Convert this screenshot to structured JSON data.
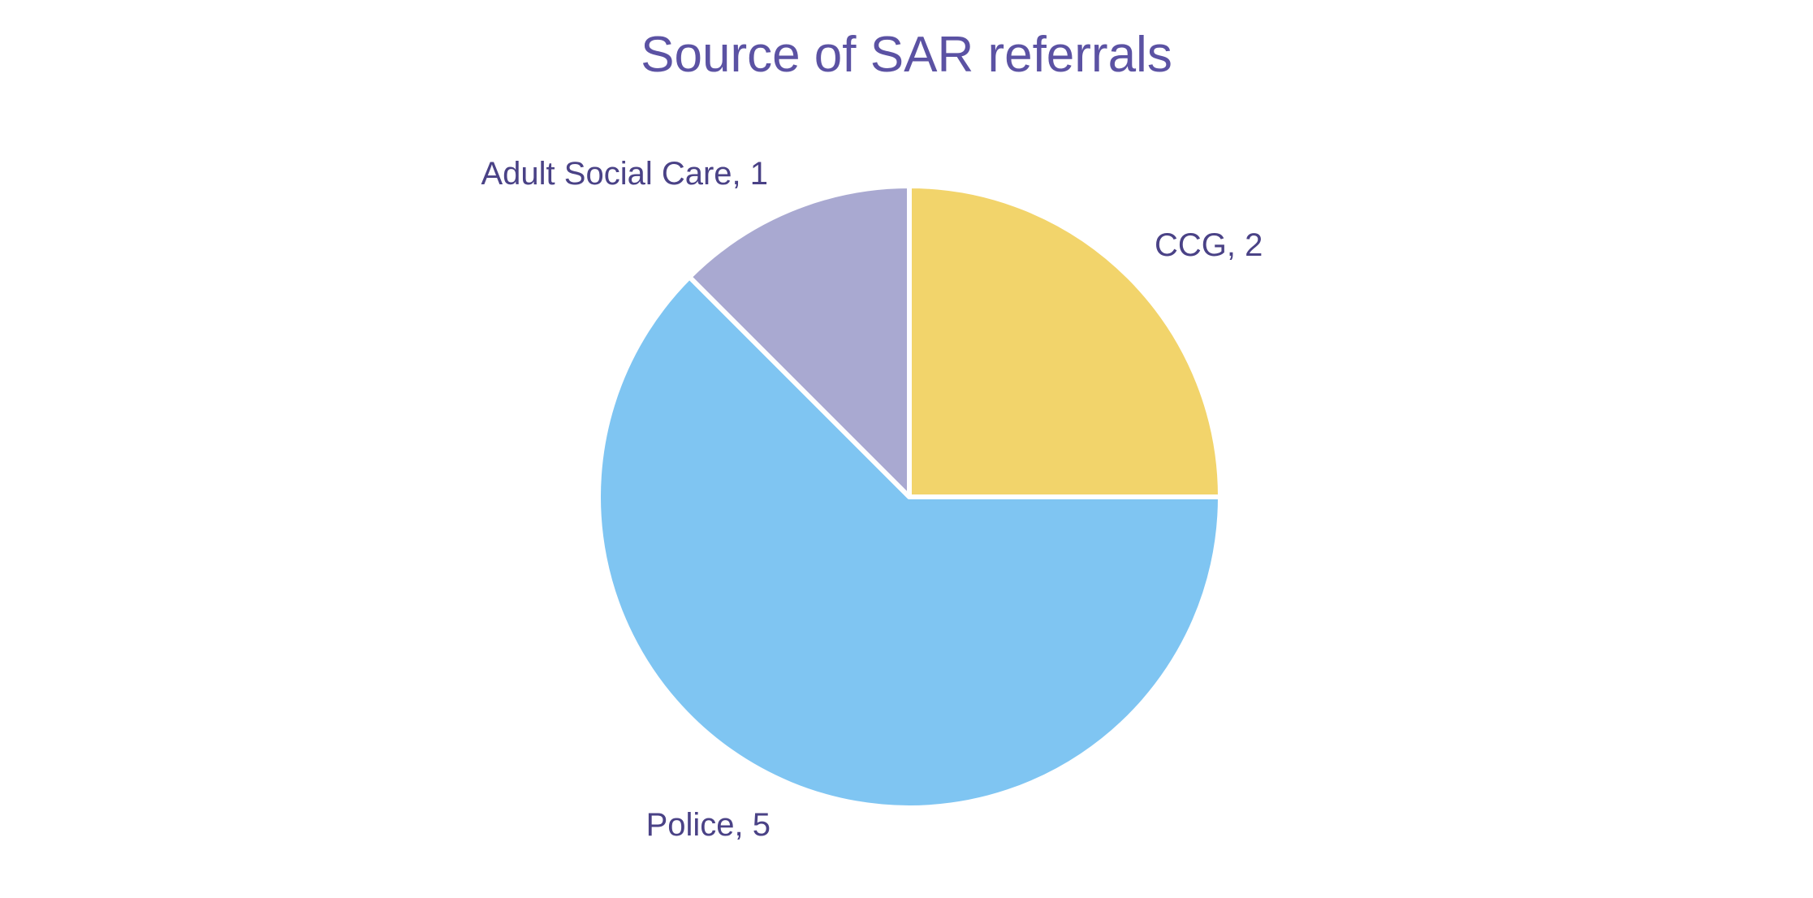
{
  "chart_data": {
    "type": "pie",
    "title": "Source of SAR referrals",
    "start_angle_deg": 0,
    "direction": "clockwise",
    "slices": [
      {
        "label": "CCG",
        "value": 2,
        "display": "CCG, 2",
        "color": "#f2d46b"
      },
      {
        "label": "Police",
        "value": 5,
        "display": "Police, 5",
        "color": "#7fc5f2"
      },
      {
        "label": "Adult Social Care",
        "value": 1,
        "display": "Adult Social Care, 1",
        "color": "#a9a9d1"
      }
    ]
  }
}
